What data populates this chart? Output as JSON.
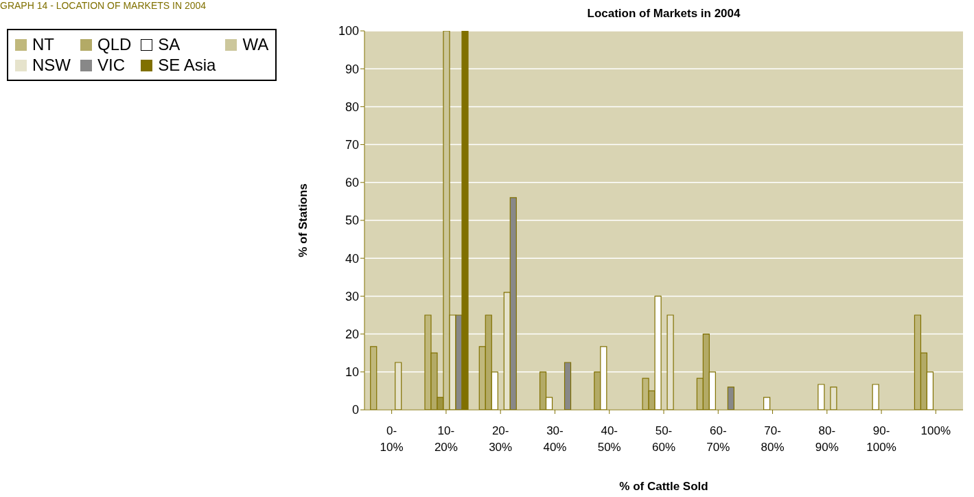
{
  "chart_data": {
    "type": "bar",
    "title": "Location of Markets in 2004",
    "xlabel": "% of Cattle Sold",
    "ylabel": "% of Stations",
    "annotations": [
      "GRAPH 14 - LOCATION OF MARKETS IN 2004"
    ],
    "categories": [
      "0-10%",
      "10-20%",
      "20-30%",
      "30-40%",
      "40-50%",
      "50-60%",
      "60-70%",
      "70-80%",
      "80-90%",
      "90-100%",
      "100%"
    ],
    "series": [
      {
        "name": "NT",
        "color": "#c0b87c",
        "values": [
          16.7,
          25,
          16.7,
          null,
          null,
          8.3,
          8.3,
          null,
          null,
          null,
          25
        ]
      },
      {
        "name": "QLD",
        "color": "#b3aa66",
        "values": [
          null,
          15,
          25,
          10,
          10,
          5,
          20,
          null,
          null,
          null,
          15
        ]
      },
      {
        "name": "SA",
        "color": "#ffffff",
        "colors": [
          "#ffffff",
          "#9e9440",
          "#ffffff",
          "#ffffff",
          "#ffffff",
          "#ffffff",
          "#ffffff",
          "#ffffff",
          "#ffffff",
          "#ffffff",
          "#ffffff"
        ],
        "values": [
          null,
          3.3,
          10,
          3.3,
          16.7,
          30,
          10,
          3.3,
          6.7,
          6.7,
          10
        ]
      },
      {
        "name": "WA",
        "color": "#ccc79c",
        "values": [
          null,
          100,
          null,
          null,
          null,
          null,
          null,
          null,
          null,
          null,
          null
        ]
      },
      {
        "name": "NSW",
        "color": "#e6e3cc",
        "values": [
          12.5,
          25,
          31,
          null,
          null,
          25,
          null,
          null,
          6,
          null,
          null
        ]
      },
      {
        "name": "VIC",
        "color": "#888888",
        "values": [
          null,
          25,
          56,
          12.5,
          null,
          null,
          6,
          null,
          null,
          null,
          null
        ]
      },
      {
        "name": "SE Asia",
        "color": "#807000",
        "values": [
          null,
          100,
          null,
          null,
          null,
          null,
          null,
          null,
          null,
          null,
          null
        ]
      }
    ],
    "ylim": [
      0,
      100
    ],
    "yticks": [
      0,
      10,
      20,
      30,
      40,
      50,
      60,
      70,
      80,
      90,
      100
    ],
    "grid": "y",
    "legend": "top left"
  }
}
